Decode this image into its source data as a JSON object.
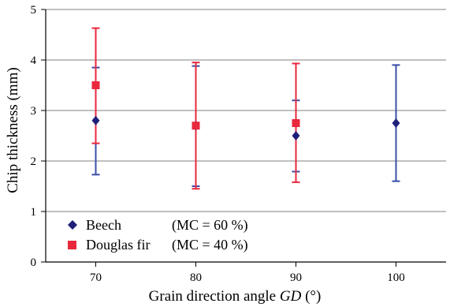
{
  "chart_data": {
    "type": "scatter",
    "xlabel_prefix": "Grain direction angle ",
    "xlabel_symbol": "GD",
    "xlabel_suffix": " (°)",
    "ylabel": "Chip thickness (mm)",
    "x_ticks": [
      "70",
      "80",
      "90",
      "100"
    ],
    "y_ticks": [
      "0",
      "1",
      "2",
      "3",
      "4",
      "5"
    ],
    "xlim": [
      65,
      105
    ],
    "ylim": [
      0,
      5
    ],
    "grid": "horizontal",
    "legend_position": "bottom-left",
    "series": [
      {
        "name": "Beech",
        "legend_condition": "(MC = 60 %)",
        "marker": "diamond",
        "color": "#1f1f7a",
        "errorbar_color": "#3a4fa8",
        "points": [
          {
            "x": 70,
            "y": 2.8,
            "ylow": 1.73,
            "yhigh": 3.85
          },
          {
            "x": 80,
            "y": 2.7,
            "ylow": 1.5,
            "yhigh": 3.88
          },
          {
            "x": 90,
            "y": 2.5,
            "ylow": 1.79,
            "yhigh": 3.2
          },
          {
            "x": 100,
            "y": 2.75,
            "ylow": 1.6,
            "yhigh": 3.9
          }
        ]
      },
      {
        "name": "Douglas fir",
        "legend_condition": "(MC = 40 %)",
        "marker": "square",
        "color": "#e8283c",
        "errorbar_color": "#e8283c",
        "points": [
          {
            "x": 70,
            "y": 3.5,
            "ylow": 2.35,
            "yhigh": 4.63
          },
          {
            "x": 80,
            "y": 2.7,
            "ylow": 1.45,
            "yhigh": 3.95
          },
          {
            "x": 90,
            "y": 2.75,
            "ylow": 1.58,
            "yhigh": 3.93
          }
        ]
      }
    ]
  }
}
